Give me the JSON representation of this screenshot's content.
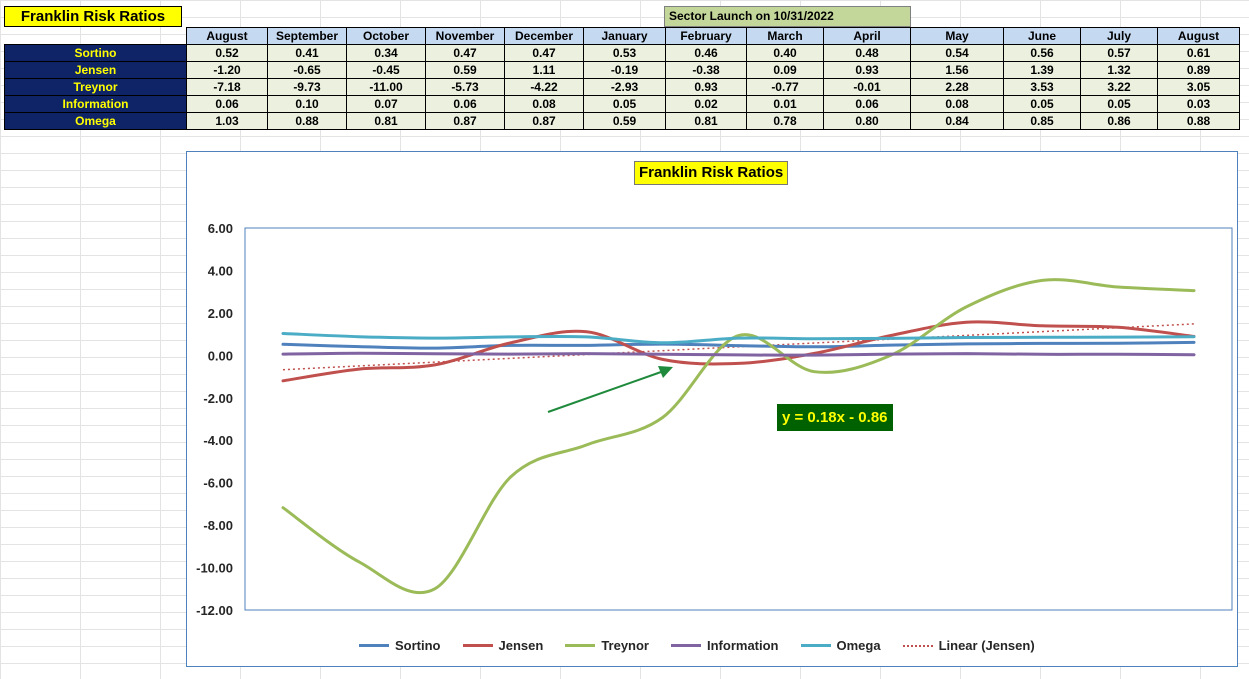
{
  "sheet": {
    "title": "Franklin Risk Ratios",
    "launch_note": "Sector Launch on 10/31/2022",
    "months": [
      "August",
      "September",
      "October",
      "November",
      "December",
      "January",
      "February",
      "March",
      "April",
      "May",
      "June",
      "July",
      "August"
    ],
    "rows": [
      {
        "label": "Sortino",
        "values": [
          "0.52",
          "0.41",
          "0.34",
          "0.47",
          "0.47",
          "0.53",
          "0.46",
          "0.40",
          "0.48",
          "0.54",
          "0.56",
          "0.57",
          "0.61"
        ]
      },
      {
        "label": "Jensen",
        "values": [
          "-1.20",
          "-0.65",
          "-0.45",
          "0.59",
          "1.11",
          "-0.19",
          "-0.38",
          "0.09",
          "0.93",
          "1.56",
          "1.39",
          "1.32",
          "0.89"
        ]
      },
      {
        "label": "Treynor",
        "values": [
          "-7.18",
          "-9.73",
          "-11.00",
          "-5.73",
          "-4.22",
          "-2.93",
          "0.93",
          "-0.77",
          "-0.01",
          "2.28",
          "3.53",
          "3.22",
          "3.05"
        ]
      },
      {
        "label": "Information",
        "values": [
          "0.06",
          "0.10",
          "0.07",
          "0.06",
          "0.08",
          "0.05",
          "0.02",
          "0.01",
          "0.06",
          "0.08",
          "0.05",
          "0.05",
          "0.03"
        ]
      },
      {
        "label": "Omega",
        "values": [
          "1.03",
          "0.88",
          "0.81",
          "0.87",
          "0.87",
          "0.59",
          "0.81",
          "0.78",
          "0.80",
          "0.84",
          "0.85",
          "0.86",
          "0.88"
        ]
      }
    ]
  },
  "chart_data": {
    "type": "line",
    "title": "Franklin Risk Ratios",
    "x": [
      1,
      2,
      3,
      4,
      5,
      6,
      7,
      8,
      9,
      10,
      11,
      12,
      13
    ],
    "ylim": [
      -12,
      6
    ],
    "yticks": [
      "6.00",
      "4.00",
      "2.00",
      "0.00",
      "-2.00",
      "-4.00",
      "-6.00",
      "-8.00",
      "-10.00",
      "-12.00"
    ],
    "ytick_values": [
      6,
      4,
      2,
      0,
      -2,
      -4,
      -6,
      -8,
      -10,
      -12
    ],
    "grid": false,
    "legend_position": "bottom",
    "series": [
      {
        "name": "Sortino",
        "color": "#4f81bd",
        "values": [
          0.52,
          0.41,
          0.34,
          0.47,
          0.47,
          0.53,
          0.46,
          0.4,
          0.48,
          0.54,
          0.56,
          0.57,
          0.61
        ]
      },
      {
        "name": "Jensen",
        "color": "#c0504d",
        "values": [
          -1.2,
          -0.65,
          -0.45,
          0.59,
          1.11,
          -0.19,
          -0.38,
          0.09,
          0.93,
          1.56,
          1.39,
          1.32,
          0.89
        ]
      },
      {
        "name": "Treynor",
        "color": "#9bbb59",
        "values": [
          -7.18,
          -9.73,
          -11.0,
          -5.73,
          -4.22,
          -2.93,
          0.93,
          -0.77,
          -0.01,
          2.28,
          3.53,
          3.22,
          3.05
        ]
      },
      {
        "name": "Information",
        "color": "#8064a2",
        "values": [
          0.06,
          0.1,
          0.07,
          0.06,
          0.08,
          0.05,
          0.02,
          0.01,
          0.06,
          0.08,
          0.05,
          0.05,
          0.03
        ]
      },
      {
        "name": "Omega",
        "color": "#4bacc6",
        "values": [
          1.03,
          0.88,
          0.81,
          0.87,
          0.87,
          0.59,
          0.81,
          0.78,
          0.8,
          0.84,
          0.85,
          0.86,
          0.88
        ]
      }
    ],
    "trendline": {
      "name": "Linear (Jensen)",
      "color": "#c0504d",
      "slope": 0.18,
      "intercept": -0.86
    },
    "annotation": {
      "text": "y = 0.18x - 0.86",
      "arrow_color": "#1f8a3c"
    }
  }
}
